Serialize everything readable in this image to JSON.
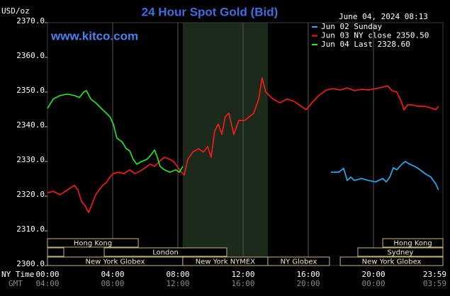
{
  "chart_data": {
    "type": "line",
    "title": "24 Hour Spot Gold (Bid)",
    "watermark": "www.kitco.com",
    "timestamp": "June 04, 2024 08:13",
    "ylabel": "USD/oz",
    "xlabel": "NY Time",
    "x2label": "GMT",
    "xlim": [
      0,
      24.26
    ],
    "xticks": [
      {
        "value": 0,
        "label": "00:00"
      },
      {
        "value": 4,
        "label": "04:00"
      },
      {
        "value": 8,
        "label": "08:00"
      },
      {
        "value": 12,
        "label": "12:00"
      },
      {
        "value": 16,
        "label": "16:00"
      },
      {
        "value": 20,
        "label": "20:00"
      },
      {
        "value": 23.98,
        "label": "23:59"
      }
    ],
    "x2ticks": [
      {
        "value": 0,
        "label": "04:00"
      },
      {
        "value": 4,
        "label": "08:00"
      },
      {
        "value": 8,
        "label": "12:00"
      },
      {
        "value": 12,
        "label": "16:00"
      },
      {
        "value": 16,
        "label": "20:00"
      },
      {
        "value": 20,
        "label": "00:00"
      },
      {
        "value": 23.98,
        "label": "03:59"
      }
    ],
    "ylim": [
      2300,
      2370
    ],
    "yticks": [
      {
        "value": 2300,
        "label": "2300.0"
      },
      {
        "value": 2310,
        "label": "2310.0"
      },
      {
        "value": 2320,
        "label": "2320.0"
      },
      {
        "value": 2330,
        "label": "2330.0"
      },
      {
        "value": 2340,
        "label": "2340.0"
      },
      {
        "value": 2350,
        "label": "2350.0"
      },
      {
        "value": 2360,
        "label": "2360.0"
      },
      {
        "value": 2370,
        "label": "2370.0"
      }
    ],
    "xgrid": true,
    "legend_position": "upper right",
    "shaded_range": [
      8.3,
      13.52
    ],
    "session_rows": [
      [
        {
          "name": "Hong Kong",
          "start": 0,
          "end": 5.57
        },
        {
          "name": "Hong Kong",
          "start": 20.57,
          "end": 24.26
        }
      ],
      [
        {
          "name": null,
          "start": 0,
          "end": 1.0
        },
        {
          "name": "London",
          "start": 3.48,
          "end": 11.0
        },
        {
          "name": "Sydney",
          "start": 19.04,
          "end": 24.26
        }
      ],
      [
        {
          "name": "New York Globex",
          "start": 0,
          "end": 8.3
        },
        {
          "name": "New York NYMEX",
          "start": 8.3,
          "end": 13.52
        },
        {
          "name": "NY Globex",
          "start": 13.52,
          "end": 17.3
        },
        {
          "name": "New York Globex",
          "start": 17.96,
          "end": 24.26
        }
      ]
    ],
    "series": [
      {
        "name": "Jun 02 Sunday",
        "color": "#22b4ff",
        "x": [
          17.39,
          17.87,
          18.17,
          18.39,
          18.61,
          18.83,
          19.26,
          19.7,
          20.13,
          20.57,
          20.78,
          21.0,
          21.22,
          21.43,
          21.74,
          21.96,
          22.22,
          22.52,
          22.74,
          23.17,
          23.52,
          23.83,
          23.98
        ],
        "values": [
          2326.9,
          2326.9,
          2328.0,
          2324.5,
          2325.5,
          2324.5,
          2325.1,
          2324.5,
          2324.1,
          2325.1,
          2324.1,
          2325.5,
          2328.2,
          2327.6,
          2329.2,
          2330.0,
          2329.2,
          2328.6,
          2328.0,
          2326.5,
          2325.5,
          2323.5,
          2321.8
        ]
      },
      {
        "name": "Jun 03 NY close 2350.50",
        "color": "#ff1a1a",
        "x": [
          0,
          0.35,
          0.78,
          1.22,
          1.65,
          1.87,
          2.09,
          2.3,
          2.52,
          2.74,
          2.96,
          3.17,
          3.39,
          3.61,
          3.83,
          4.04,
          4.35,
          4.7,
          5.04,
          5.35,
          5.65,
          6.0,
          6.3,
          6.57,
          6.87,
          7.17,
          7.52,
          7.74,
          7.96,
          8.17,
          8.39,
          8.61,
          8.91,
          9.26,
          9.57,
          9.83,
          10.04,
          10.26,
          10.48,
          10.7,
          10.91,
          11.13,
          11.43,
          11.74,
          12.09,
          12.39,
          12.65,
          12.96,
          13.17,
          13.39,
          13.83,
          14.26,
          14.7,
          15.13,
          15.57,
          15.87,
          16.22,
          16.65,
          17.09,
          17.52,
          17.96,
          18.39,
          18.83,
          19.26,
          19.7,
          20.13,
          20.57,
          20.87,
          21.13,
          21.43,
          21.74,
          21.87,
          22.09,
          22.39,
          22.74,
          23.17,
          23.61,
          23.83,
          23.98
        ],
        "values": [
          2321.0,
          2321.4,
          2320.4,
          2321.8,
          2323.1,
          2321.8,
          2318.4,
          2317.3,
          2315.3,
          2317.8,
          2320.4,
          2321.8,
          2323.1,
          2323.9,
          2325.5,
          2326.5,
          2326.9,
          2326.5,
          2327.6,
          2326.5,
          2327.1,
          2328.2,
          2329.2,
          2328.6,
          2330.0,
          2331.2,
          2330.6,
          2330.0,
          2328.6,
          2327.1,
          2326.1,
          2330.6,
          2332.7,
          2333.7,
          2332.7,
          2334.3,
          2331.2,
          2338.8,
          2340.8,
          2337.8,
          2342.9,
          2343.9,
          2337.8,
          2341.8,
          2341.8,
          2342.9,
          2343.9,
          2348.0,
          2354.1,
          2350.0,
          2348.0,
          2346.9,
          2348.0,
          2347.3,
          2345.9,
          2344.9,
          2346.9,
          2349.0,
          2350.6,
          2351.0,
          2350.6,
          2351.2,
          2350.4,
          2350.8,
          2350.6,
          2351.0,
          2351.4,
          2351.8,
          2350.4,
          2350.0,
          2346.9,
          2344.9,
          2346.3,
          2346.3,
          2345.9,
          2345.9,
          2345.3,
          2344.9,
          2345.9
        ]
      },
      {
        "name": "Jun 04 Last 2328.60",
        "color": "#22ee22",
        "x": [
          0,
          0.35,
          0.78,
          1.22,
          1.65,
          1.96,
          2.22,
          2.39,
          2.65,
          2.96,
          3.17,
          3.52,
          3.83,
          4.04,
          4.26,
          4.57,
          4.83,
          5.04,
          5.26,
          5.48,
          5.78,
          6.09,
          6.3,
          6.57,
          6.74,
          6.91,
          7.17,
          7.52,
          7.87,
          8.09,
          8.3
        ],
        "values": [
          2345.3,
          2348.0,
          2349.0,
          2349.4,
          2349.0,
          2348.4,
          2350.0,
          2350.4,
          2348.0,
          2346.9,
          2345.9,
          2344.3,
          2342.9,
          2340.8,
          2336.7,
          2335.7,
          2333.7,
          2333.1,
          2330.6,
          2329.2,
          2330.0,
          2330.6,
          2331.6,
          2333.3,
          2331.2,
          2328.6,
          2327.6,
          2326.9,
          2327.6,
          2326.9,
          2328.6
        ]
      }
    ]
  }
}
